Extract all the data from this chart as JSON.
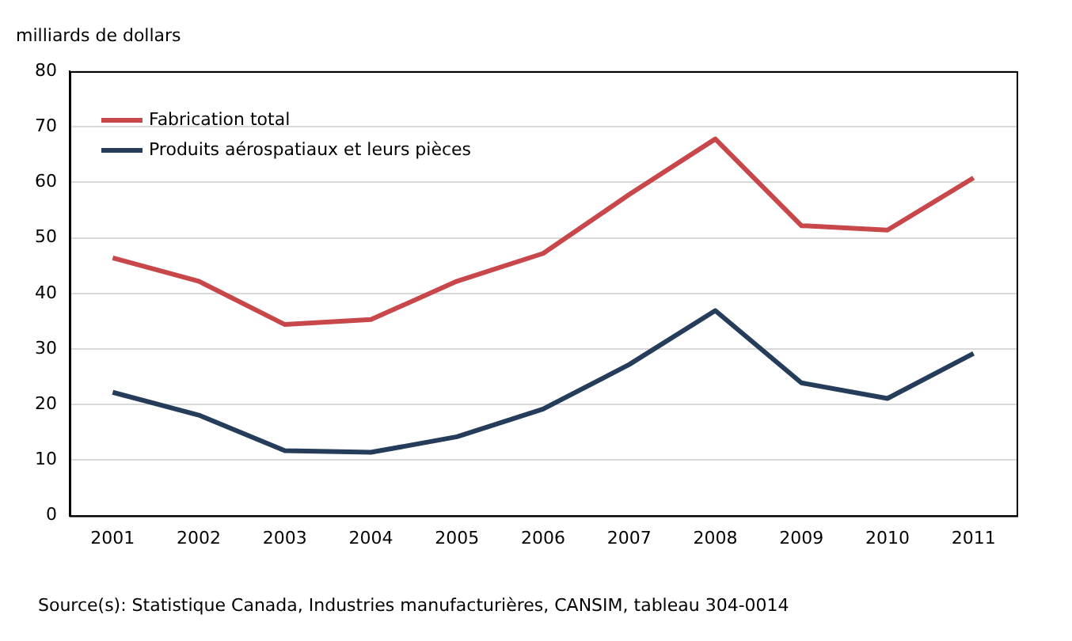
{
  "chart_data": {
    "type": "line",
    "ylabel": "milliards de dollars",
    "categories": [
      "2001",
      "2002",
      "2003",
      "2004",
      "2005",
      "2006",
      "2007",
      "2008",
      "2009",
      "2010",
      "2011"
    ],
    "series": [
      {
        "name": "Fabrication total",
        "color": "#c8474a",
        "values": [
          46.4,
          42.2,
          34.4,
          35.3,
          42.2,
          47.2,
          57.8,
          67.8,
          52.2,
          51.4,
          60.8
        ]
      },
      {
        "name": "Produits aérospatiaux et leurs pièces",
        "color": "#253d5b",
        "values": [
          22.2,
          18.1,
          11.7,
          11.4,
          14.2,
          19.2,
          27.2,
          36.9,
          23.9,
          21.1,
          29.2
        ]
      }
    ],
    "ylim": [
      0,
      80
    ],
    "yticks": [
      0,
      10,
      20,
      30,
      40,
      50,
      60,
      70,
      80
    ],
    "grid": "y",
    "legend": "top left",
    "marker": "none",
    "line_style": "solid",
    "annotations": [
      "Source(s): Statistique Canada, Industries manufacturières, CANSIM, tableau 304-0014"
    ]
  }
}
